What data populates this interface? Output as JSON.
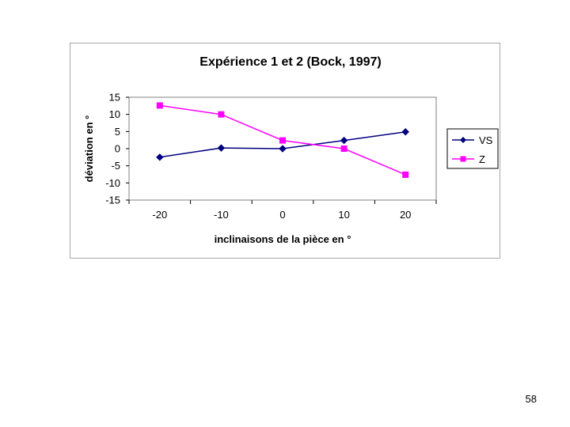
{
  "slide_number": "58",
  "chart_data": {
    "type": "line",
    "title": "Expérience 1 et 2 (Bock, 1997)",
    "xlabel": "inclinaisons de la pièce en °",
    "ylabel": "déviation en °",
    "categories": [
      "-20",
      "-10",
      "0",
      "10",
      "20"
    ],
    "ylim": [
      -15,
      15
    ],
    "yticks": [
      15,
      10,
      5,
      0,
      -5,
      -10,
      -15
    ],
    "grid": false,
    "legend_position": "right",
    "series": [
      {
        "name": "VS",
        "values": [
          -2.5,
          0.2,
          0,
          2.4,
          4.9
        ],
        "color": "#000080",
        "marker": "diamond"
      },
      {
        "name": "Z",
        "values": [
          12.6,
          10,
          2.4,
          0,
          -7.6
        ],
        "color": "#ff00ff",
        "marker": "square"
      }
    ]
  }
}
